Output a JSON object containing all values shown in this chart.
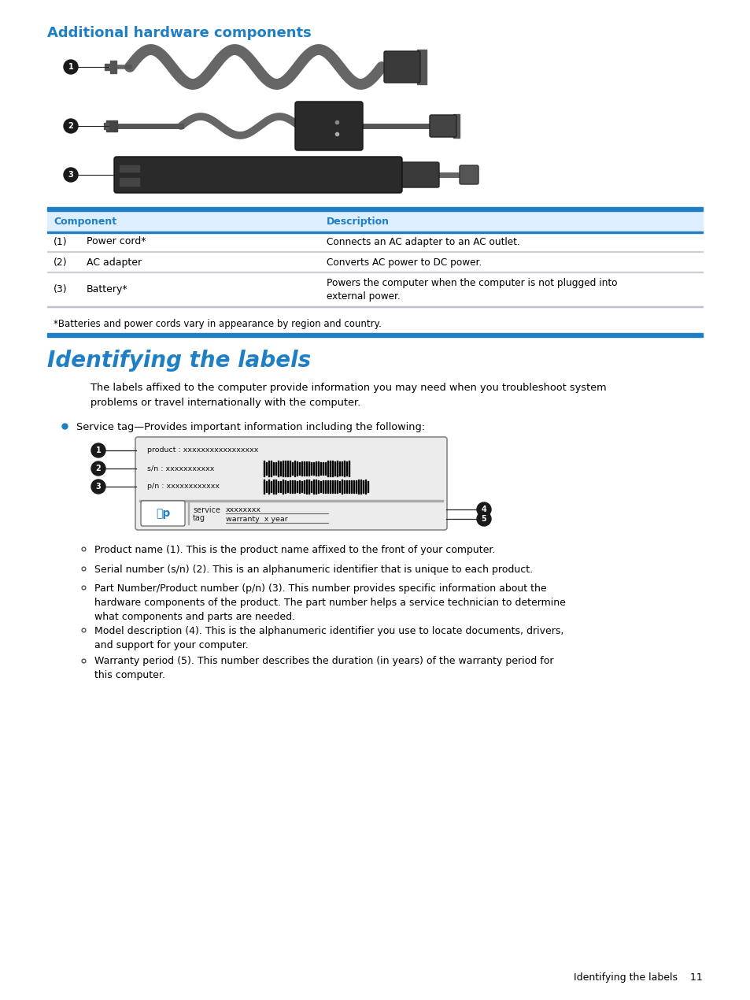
{
  "title1": "Additional hardware components",
  "title2": "Identifying the labels",
  "blue_color": "#1F7FC4",
  "text_color": "#000000",
  "page_bg": "#ffffff",
  "section1_title_size": 13,
  "section2_title_size": 20,
  "body_font_size": 9,
  "table_rows": [
    {
      "num": "(1)",
      "component": "Power cord*",
      "description": "Connects an AC adapter to an AC outlet."
    },
    {
      "num": "(2)",
      "component": "AC adapter",
      "description": "Converts AC power to DC power."
    },
    {
      "num": "(3)",
      "component": "Battery*",
      "description": "Powers the computer when the computer is not plugged into\nexternal power."
    }
  ],
  "table_footnote": "*Batteries and power cords vary in appearance by region and country.",
  "table_col_header1": "Component",
  "table_col_header2": "Description",
  "para_intro": "The labels affixed to the computer provide information you may need when you troubleshoot system\nproblems or travel internationally with the computer.",
  "bullet1": "Service tag—Provides important information including the following:",
  "sub_bullets": [
    {
      "text": "Product name ",
      "bold": "(1)",
      "rest": ". This is the product name affixed to the front of your computer.",
      "lines": 1
    },
    {
      "text": "Serial number (s/n) ",
      "bold": "(2)",
      "rest": ". This is an alphanumeric identifier that is unique to each product.",
      "lines": 1
    },
    {
      "text": "Part Number/Product number (p/n) ",
      "bold": "(3)",
      "rest": ". This number provides specific information about the\nhardware components of the product. The part number helps a service technician to determine\nwhat components and parts are needed.",
      "lines": 3
    },
    {
      "text": "Model description ",
      "bold": "(4)",
      "rest": ". This is the alphanumeric identifier you use to locate documents, drivers,\nand support for your computer.",
      "lines": 2
    },
    {
      "text": "Warranty period ",
      "bold": "(5)",
      "rest": ". This number describes the duration (in years) of the warranty period for\nthis computer.",
      "lines": 2
    }
  ],
  "footer_text": "Identifying the labels    11"
}
